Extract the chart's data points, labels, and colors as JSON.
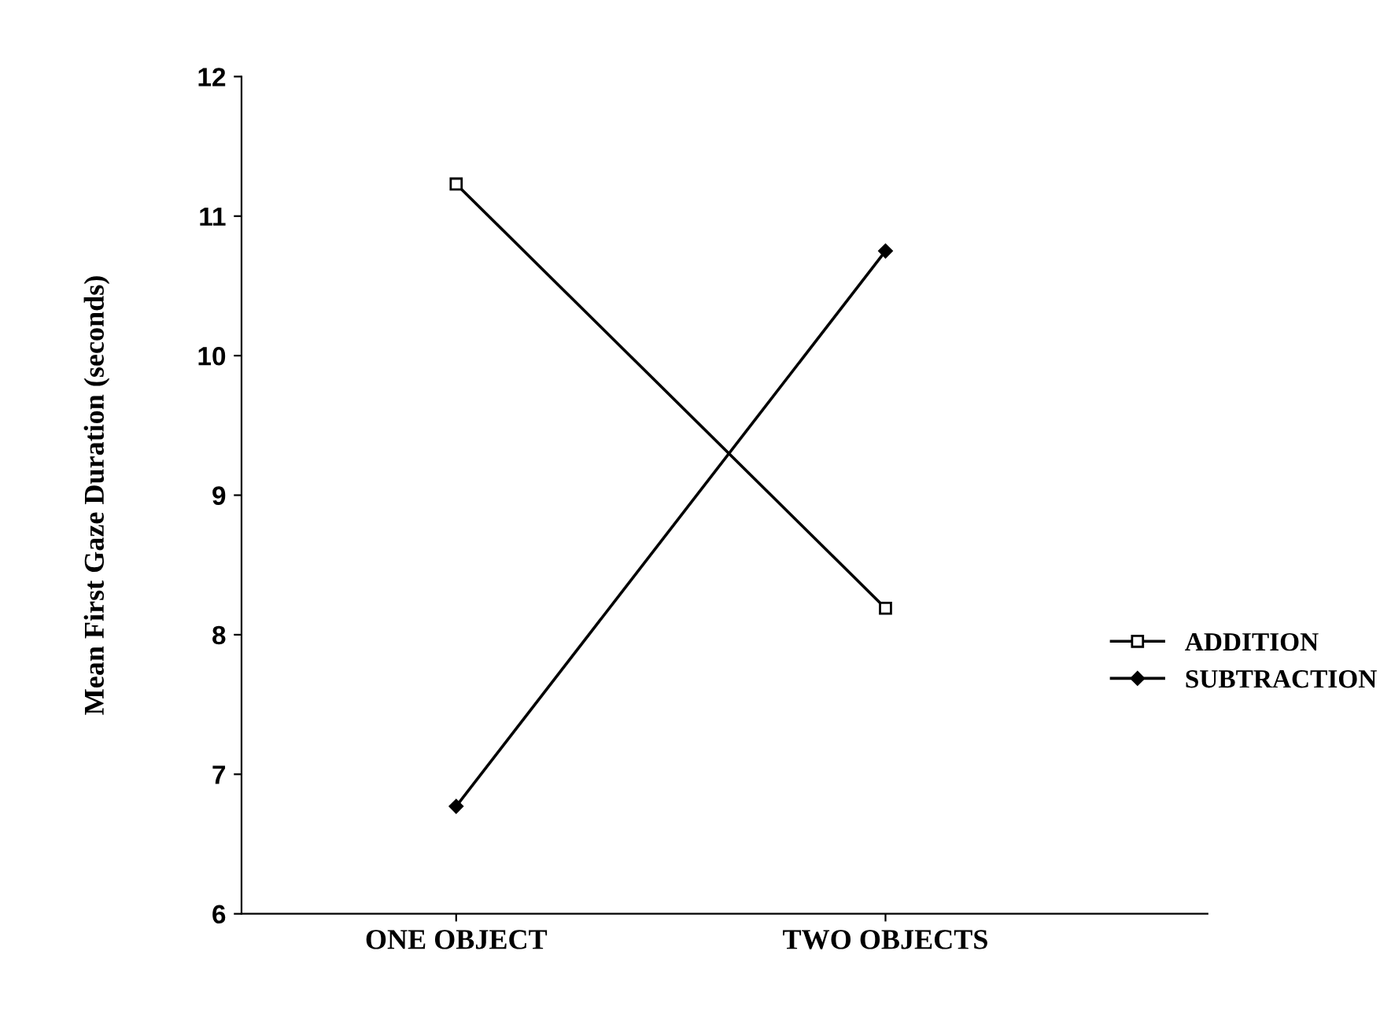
{
  "chart_data": {
    "type": "line",
    "ylabel": "Mean First Gaze Duration (seconds)",
    "categories": [
      "ONE OBJECT",
      "TWO OBJECTS"
    ],
    "series": [
      {
        "name": "ADDITION",
        "color": "#000000",
        "values": [
          11.23,
          8.19
        ],
        "marker": "square"
      },
      {
        "name": "SUBTRACTION",
        "color": "#000000",
        "values": [
          6.77,
          10.75
        ],
        "marker": "diamond"
      }
    ],
    "ylim": [
      6,
      12
    ],
    "yticks": [
      6,
      7,
      8,
      9,
      10,
      11,
      12
    ],
    "grid": false,
    "legend": "right",
    "line_style": "solid"
  }
}
